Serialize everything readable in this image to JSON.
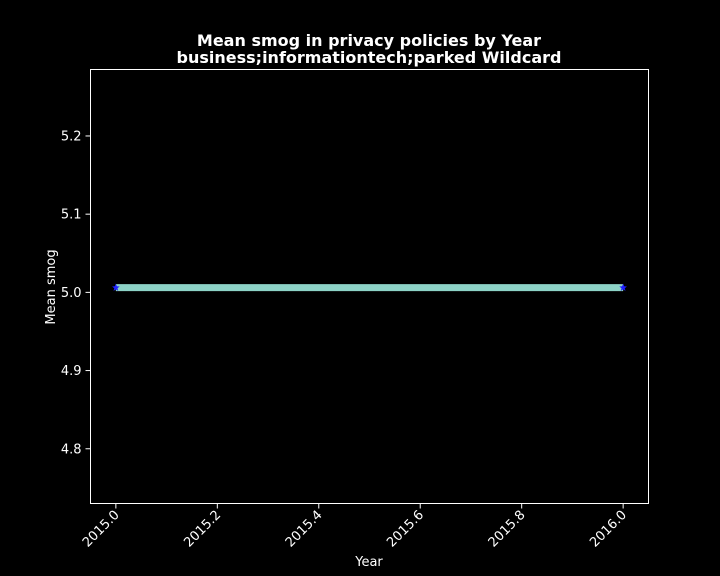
{
  "chart_data": {
    "type": "line",
    "title": "Mean smog in privacy policies by Year",
    "subtitle": "business;informationtech;parked Wildcard",
    "xlabel": "Year",
    "ylabel": "Mean smog",
    "x": [
      2015.0,
      2016.0
    ],
    "series": [
      {
        "values": [
          5.006,
          5.006
        ]
      }
    ],
    "xlim": [
      2014.95,
      2016.05
    ],
    "ylim": [
      4.73,
      5.285
    ],
    "xticks": [
      2015.0,
      2015.2,
      2015.4,
      2015.6,
      2015.8,
      2016.0
    ],
    "xtick_labels": [
      "2015.0",
      "2015.2",
      "2015.4",
      "2015.6",
      "2015.8",
      "2016.0"
    ],
    "yticks": [
      4.8,
      4.9,
      5.0,
      5.1,
      5.2
    ],
    "ytick_labels": [
      "4.8",
      "4.9",
      "5.0",
      "5.1",
      "5.2"
    ],
    "grid": false,
    "colors": {
      "background": "#000000",
      "axes": "#ffffff",
      "text": "#ffffff",
      "line": "#8dd3c7",
      "marker": "#1f1fff"
    },
    "marker": "star"
  }
}
